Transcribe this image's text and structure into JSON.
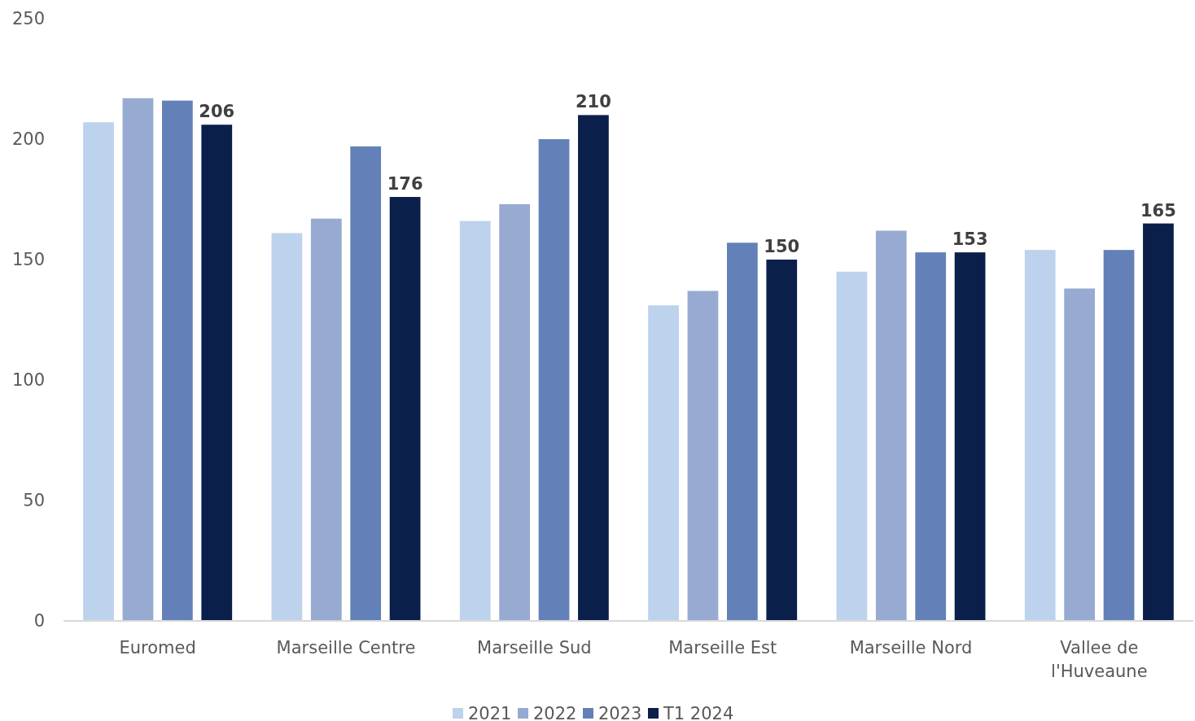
{
  "chart_data": {
    "type": "bar",
    "categories": [
      "Euromed",
      "Marseille Centre",
      "Marseille Sud",
      "Marseille Est",
      "Marseille Nord",
      "Vallee de l'Huveaune"
    ],
    "series": [
      {
        "name": "2021",
        "color": "#bdd2ec",
        "values": [
          207,
          161,
          166,
          131,
          145,
          154
        ]
      },
      {
        "name": "2022",
        "color": "#97aad1",
        "values": [
          217,
          167,
          173,
          137,
          162,
          138
        ]
      },
      {
        "name": "2023",
        "color": "#6381b8",
        "values": [
          216,
          197,
          200,
          157,
          153,
          154
        ]
      },
      {
        "name": "T1 2024",
        "color": "#0b1f4b",
        "values": [
          206,
          176,
          210,
          150,
          153,
          165
        ],
        "value_labels": [
          "206",
          "176",
          "210",
          "150",
          "153",
          "165"
        ]
      }
    ],
    "ylim": [
      0,
      250
    ],
    "yticks": [
      0,
      50,
      100,
      150,
      200,
      250
    ],
    "grid": false,
    "legend": "bottom"
  }
}
